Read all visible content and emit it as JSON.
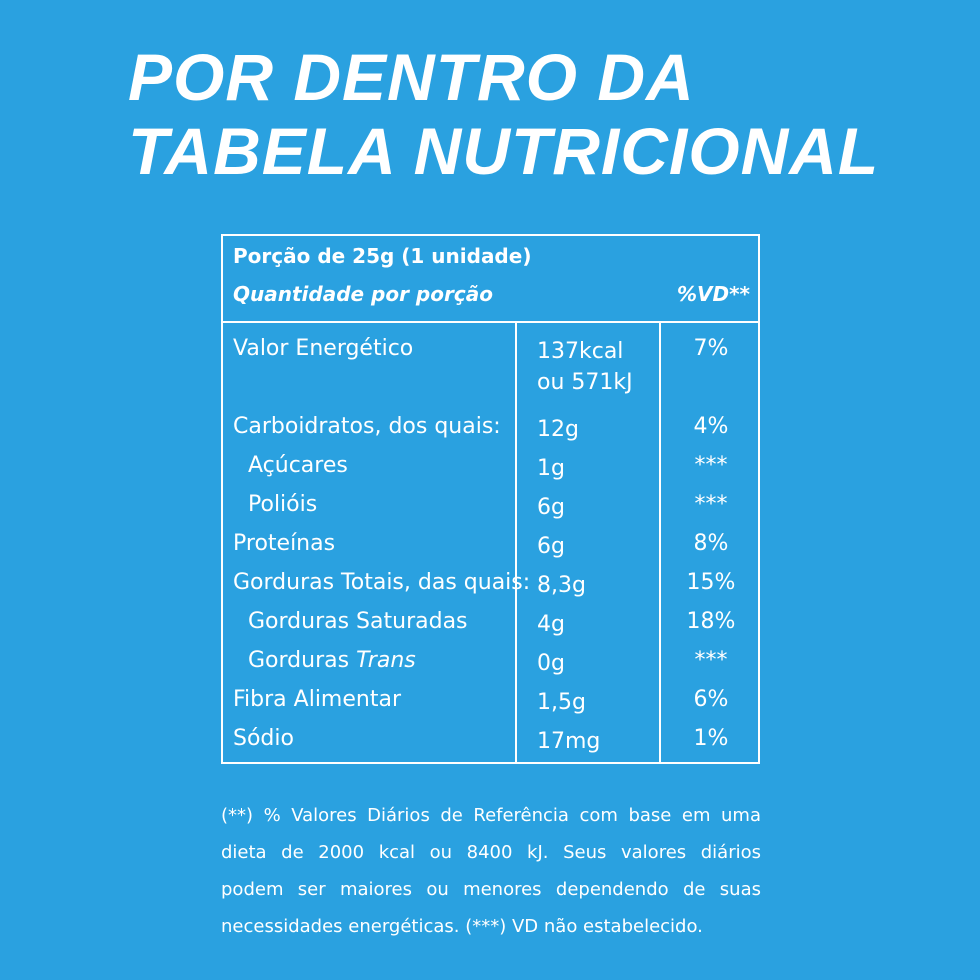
{
  "title": {
    "line1": "POR DENTRO DA",
    "line2": "TABELA NUTRICIONAL"
  },
  "table": {
    "portion": "Porção de 25g  (1 unidade)",
    "qty_header": "Quantidade por porção",
    "vd_header": "%VD**",
    "rows": [
      {
        "name": "Valor Energético",
        "amount": "137kcal",
        "amount2": "ou 571kJ",
        "vd": "7%"
      },
      {
        "name": "Carboidratos, dos quais:",
        "amount": "12g",
        "vd": "4%"
      },
      {
        "name": "Açúcares",
        "amount": "1g",
        "vd": "***"
      },
      {
        "name": "Polióis",
        "amount": "6g",
        "vd": "***"
      },
      {
        "name": "Proteínas",
        "amount": "6g",
        "vd": "8%"
      },
      {
        "name": "Gorduras Totais, das quais:",
        "amount": "8,3g",
        "vd": "15%"
      },
      {
        "name": "Gorduras Saturadas",
        "amount": "4g",
        "vd": "18%"
      },
      {
        "name": "Gorduras",
        "name_italic": "Trans",
        "amount": "0g",
        "vd": "***"
      },
      {
        "name": "Fibra Alimentar",
        "amount": "1,5g",
        "vd": "6%"
      },
      {
        "name": "Sódio",
        "amount": "17mg",
        "vd": "1%"
      }
    ]
  },
  "footnote": {
    "line1": "(**) % Valores Diários de Referência com base em uma",
    "line2": "dieta de 2000 kcal ou 8400 kJ. Seus valores diários",
    "line3": "podem ser maiores ou menores dependendo de suas",
    "line4": "necessidades energéticas. (***) VD não estabelecido."
  },
  "colors": {
    "background": "#2aa1e0",
    "text": "#ffffff"
  }
}
